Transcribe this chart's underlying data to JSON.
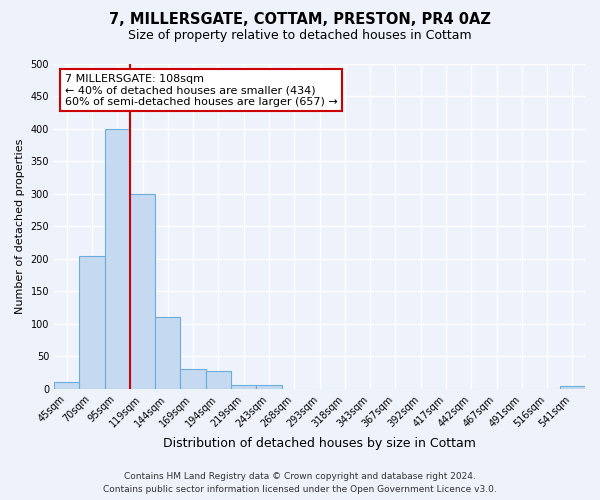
{
  "title1": "7, MILLERSGATE, COTTAM, PRESTON, PR4 0AZ",
  "title2": "Size of property relative to detached houses in Cottam",
  "xlabel": "Distribution of detached houses by size in Cottam",
  "ylabel": "Number of detached properties",
  "bar_labels": [
    "45sqm",
    "70sqm",
    "95sqm",
    "119sqm",
    "144sqm",
    "169sqm",
    "194sqm",
    "219sqm",
    "243sqm",
    "268sqm",
    "293sqm",
    "318sqm",
    "343sqm",
    "367sqm",
    "392sqm",
    "417sqm",
    "442sqm",
    "467sqm",
    "491sqm",
    "516sqm",
    "541sqm"
  ],
  "bar_values": [
    10,
    205,
    400,
    300,
    110,
    30,
    27,
    6,
    6,
    0,
    0,
    0,
    0,
    0,
    0,
    0,
    0,
    0,
    0,
    0,
    4
  ],
  "bar_color": "#c5d9f0",
  "bar_edge_color": "#6aaee0",
  "vline_x": 3.0,
  "vline_color": "#cc0000",
  "annotation_title": "7 MILLERSGATE: 108sqm",
  "annotation_line1": "← 40% of detached houses are smaller (434)",
  "annotation_line2": "60% of semi-detached houses are larger (657) →",
  "annotation_box_facecolor": "#ffffff",
  "annotation_box_edgecolor": "#cc0000",
  "ylim": [
    0,
    500
  ],
  "yticks": [
    0,
    50,
    100,
    150,
    200,
    250,
    300,
    350,
    400,
    450,
    500
  ],
  "footer1": "Contains HM Land Registry data © Crown copyright and database right 2024.",
  "footer2": "Contains public sector information licensed under the Open Government Licence v3.0.",
  "background_color": "#eef2fa",
  "grid_color": "#ffffff",
  "title1_fontsize": 10.5,
  "title2_fontsize": 9,
  "ylabel_fontsize": 8,
  "xlabel_fontsize": 9,
  "tick_fontsize": 7,
  "footer_fontsize": 6.5,
  "ann_fontsize": 8
}
